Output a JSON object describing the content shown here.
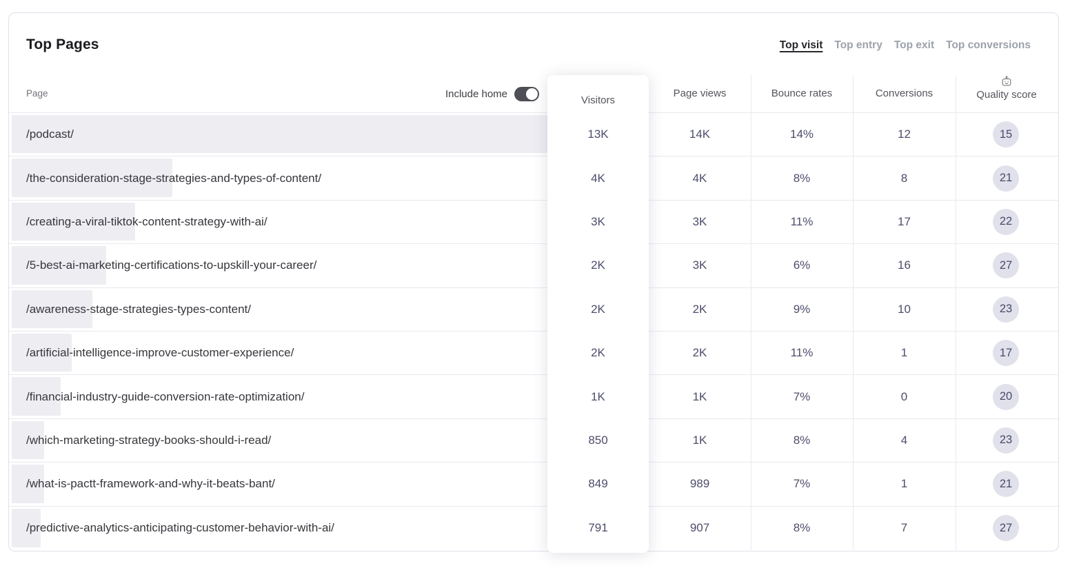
{
  "panel": {
    "title": "Top Pages",
    "tabs": [
      {
        "label": "Top visit",
        "active": true
      },
      {
        "label": "Top entry",
        "active": false
      },
      {
        "label": "Top exit",
        "active": false
      },
      {
        "label": "Top conversions",
        "active": false
      }
    ],
    "include_home": {
      "label": "Include home",
      "state": "on"
    }
  },
  "table": {
    "page_header": "Page",
    "columns": [
      "Visitors",
      "Page views",
      "Bounce rates",
      "Conversions",
      "Quality score"
    ],
    "quality_header_icon": "robot-icon",
    "rows": [
      {
        "page": "/podcast/",
        "bar_pct": 100,
        "visitors": "13K",
        "page_views": "14K",
        "bounce_rate": "14%",
        "conversions": "12",
        "quality_score": "15"
      },
      {
        "page": "/the-consideration-stage-strategies-and-types-of-content/",
        "bar_pct": 30,
        "visitors": "4K",
        "page_views": "4K",
        "bounce_rate": "8%",
        "conversions": "8",
        "quality_score": "21"
      },
      {
        "page": "/creating-a-viral-tiktok-content-strategy-with-ai/",
        "bar_pct": 23,
        "visitors": "3K",
        "page_views": "3K",
        "bounce_rate": "11%",
        "conversions": "17",
        "quality_score": "22"
      },
      {
        "page": "/5-best-ai-marketing-certifications-to-upskill-your-career/",
        "bar_pct": 17.6,
        "visitors": "2K",
        "page_views": "3K",
        "bounce_rate": "6%",
        "conversions": "16",
        "quality_score": "27"
      },
      {
        "page": "/awareness-stage-strategies-types-content/",
        "bar_pct": 15,
        "visitors": "2K",
        "page_views": "2K",
        "bounce_rate": "9%",
        "conversions": "10",
        "quality_score": "23"
      },
      {
        "page": "/artificial-intelligence-improve-customer-experience/",
        "bar_pct": 11.2,
        "visitors": "2K",
        "page_views": "2K",
        "bounce_rate": "11%",
        "conversions": "1",
        "quality_score": "17"
      },
      {
        "page": "/financial-industry-guide-conversion-rate-optimization/",
        "bar_pct": 9.2,
        "visitors": "1K",
        "page_views": "1K",
        "bounce_rate": "7%",
        "conversions": "0",
        "quality_score": "20"
      },
      {
        "page": "/which-marketing-strategy-books-should-i-read/",
        "bar_pct": 6.1,
        "visitors": "850",
        "page_views": "1K",
        "bounce_rate": "8%",
        "conversions": "4",
        "quality_score": "23"
      },
      {
        "page": "/what-is-pactt-framework-and-why-it-beats-bant/",
        "bar_pct": 6.1,
        "visitors": "849",
        "page_views": "989",
        "bounce_rate": "7%",
        "conversions": "1",
        "quality_score": "21"
      },
      {
        "page": "/predictive-analytics-anticipating-customer-behavior-with-ai/",
        "bar_pct": 5.4,
        "visitors": "791",
        "page_views": "907",
        "bounce_rate": "8%",
        "conversions": "7",
        "quality_score": "27"
      }
    ]
  },
  "colors": {
    "accent_text": "#4d4d6b",
    "badge_bg": "#e1e1ec",
    "bar_fill": "#ededf2",
    "toggle_on": "#4e4e57",
    "border": "#e9e9ef"
  }
}
